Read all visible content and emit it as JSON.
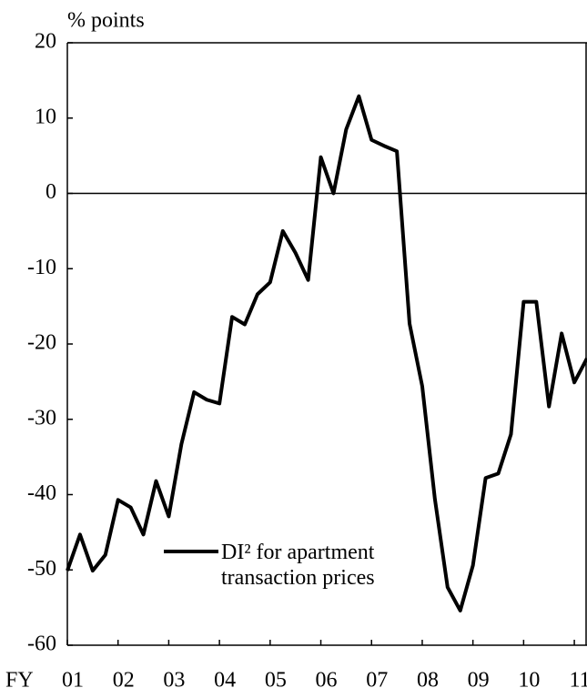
{
  "chart_data": {
    "type": "line",
    "ylabel": "% points",
    "xlabel": "FY",
    "x": [
      2001,
      2001.25,
      2001.5,
      2001.75,
      2002,
      2002.25,
      2002.5,
      2002.75,
      2003,
      2003.25,
      2003.5,
      2003.75,
      2004,
      2004.25,
      2004.5,
      2004.75,
      2005,
      2005.25,
      2005.5,
      2005.75,
      2006,
      2006.25,
      2006.5,
      2006.75,
      2007,
      2007.25,
      2007.5,
      2007.75,
      2008,
      2008.25,
      2008.5,
      2008.75,
      2009,
      2009.25,
      2009.5,
      2009.75,
      2010,
      2010.25,
      2010.5,
      2010.75,
      2011,
      2011.25
    ],
    "series": [
      {
        "name": "DI² for apartment transaction prices",
        "color": "#000000",
        "values": [
          -50.1,
          -45.3,
          -50.1,
          -48,
          -40.7,
          -41.7,
          -45.3,
          -38.2,
          -42.9,
          -33.3,
          -26.4,
          -27.4,
          -27.9,
          -16.4,
          -17.4,
          -13.4,
          -11.8,
          -5,
          -7.9,
          -11.5,
          4.8,
          0,
          8.5,
          12.9,
          7.1,
          6.3,
          5.6,
          -17.3,
          -25.6,
          -40.6,
          -52.3,
          -55.4,
          -49.4,
          -37.8,
          -37.2,
          -32,
          -14.4,
          -14.4,
          -28.3,
          -18.6,
          -25.1,
          -21.9
        ]
      }
    ],
    "xlim": [
      2001,
      2011.25
    ],
    "xticks": [
      {
        "value": 2001,
        "label": "01"
      },
      {
        "value": 2002,
        "label": "02"
      },
      {
        "value": 2003,
        "label": "03"
      },
      {
        "value": 2004,
        "label": "04"
      },
      {
        "value": 2005,
        "label": "05"
      },
      {
        "value": 2006,
        "label": "06"
      },
      {
        "value": 2007,
        "label": "07"
      },
      {
        "value": 2008,
        "label": "08"
      },
      {
        "value": 2009,
        "label": "09"
      },
      {
        "value": 2010,
        "label": "10"
      },
      {
        "value": 2011,
        "label": "11"
      }
    ],
    "ylim": [
      -60,
      20
    ],
    "yticks": [
      -60,
      -50,
      -40,
      -30,
      -20,
      -10,
      0,
      10,
      20
    ],
    "zero_line": true
  }
}
